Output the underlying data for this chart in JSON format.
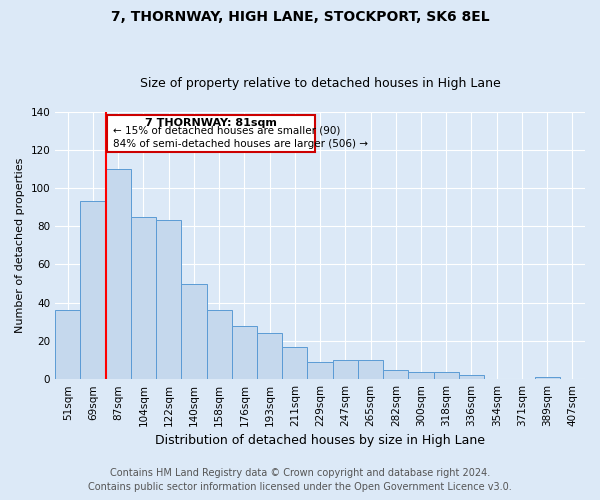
{
  "title": "7, THORNWAY, HIGH LANE, STOCKPORT, SK6 8EL",
  "subtitle": "Size of property relative to detached houses in High Lane",
  "xlabel": "Distribution of detached houses by size in High Lane",
  "ylabel": "Number of detached properties",
  "categories": [
    "51sqm",
    "69sqm",
    "87sqm",
    "104sqm",
    "122sqm",
    "140sqm",
    "158sqm",
    "176sqm",
    "193sqm",
    "211sqm",
    "229sqm",
    "247sqm",
    "265sqm",
    "282sqm",
    "300sqm",
    "318sqm",
    "336sqm",
    "354sqm",
    "371sqm",
    "389sqm",
    "407sqm"
  ],
  "values": [
    36,
    93,
    110,
    85,
    83,
    50,
    36,
    28,
    24,
    17,
    9,
    10,
    10,
    5,
    4,
    4,
    2,
    0,
    0,
    1,
    0
  ],
  "bar_color": "#c5d8ed",
  "bar_edge_color": "#5b9bd5",
  "red_line_x": 1.5,
  "ylim": [
    0,
    140
  ],
  "yticks": [
    0,
    20,
    40,
    60,
    80,
    100,
    120,
    140
  ],
  "annotation_title": "7 THORNWAY: 81sqm",
  "annotation_line1": "← 15% of detached houses are smaller (90)",
  "annotation_line2": "84% of semi-detached houses are larger (506) →",
  "annotation_box_color": "#ffffff",
  "annotation_box_edge": "#cc0000",
  "footer_line1": "Contains HM Land Registry data © Crown copyright and database right 2024.",
  "footer_line2": "Contains public sector information licensed under the Open Government Licence v3.0.",
  "title_fontsize": 10,
  "subtitle_fontsize": 9,
  "xlabel_fontsize": 9,
  "ylabel_fontsize": 8,
  "tick_fontsize": 7.5,
  "ann_title_fontsize": 8,
  "ann_text_fontsize": 7.5,
  "footer_fontsize": 7,
  "background_color": "#dce9f7",
  "plot_bg_color": "#dce9f7"
}
